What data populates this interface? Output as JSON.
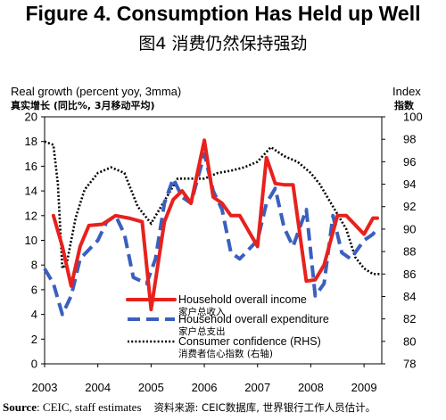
{
  "header": {
    "title": "Figure 4. Consumption Has Held up Well",
    "title_cn": "图4  消费仍然保持强劲"
  },
  "axes": {
    "left_label": "Real growth (percent yoy, 3mma)",
    "left_label_cn": "真实增长 (同比%, 3月移动平均)",
    "right_label": "Index",
    "right_label_cn": "指数"
  },
  "source": {
    "bold": "Source",
    "text": ": CEIC, staff estimates",
    "cn": "资料来源: CEIC数据库, 世界银行工作人员估计。"
  },
  "chart_data": {
    "type": "line",
    "x_start": "2003-01",
    "x_end": "2009-05",
    "x_tick_labels": [
      "2003",
      "2004",
      "2005",
      "2006",
      "2007",
      "2008",
      "2009"
    ],
    "ylim_left": [
      0,
      20
    ],
    "y_ticks_left": [
      0,
      2,
      4,
      6,
      8,
      10,
      12,
      14,
      16,
      18,
      20
    ],
    "ylim_right": [
      78,
      100
    ],
    "y_ticks_right": [
      78,
      80,
      82,
      84,
      86,
      88,
      90,
      92,
      94,
      96,
      98,
      100
    ],
    "grid": false,
    "legend_position": "bottom-center",
    "series": [
      {
        "name": "Household overall income",
        "name_cn": "家户总收入",
        "axis": "left",
        "color": "#e8211d",
        "style": "solid",
        "points": [
          [
            "2003-03",
            12.0
          ],
          [
            "2003-05",
            9.5
          ],
          [
            "2003-07",
            6.3
          ],
          [
            "2003-09",
            9.5
          ],
          [
            "2003-11",
            11.2
          ],
          [
            "2004-02",
            11.3
          ],
          [
            "2004-05",
            12.0
          ],
          [
            "2004-08",
            11.8
          ],
          [
            "2004-11",
            11.5
          ],
          [
            "2005-01",
            4.4
          ],
          [
            "2005-04",
            11.5
          ],
          [
            "2005-06",
            13.3
          ],
          [
            "2005-08",
            14.0
          ],
          [
            "2005-10",
            13.0
          ],
          [
            "2006-01",
            18.1
          ],
          [
            "2006-03",
            13.5
          ],
          [
            "2006-05",
            13.0
          ],
          [
            "2006-07",
            12.0
          ],
          [
            "2006-09",
            12.0
          ],
          [
            "2007-01",
            9.5
          ],
          [
            "2007-03",
            16.7
          ],
          [
            "2007-05",
            14.6
          ],
          [
            "2007-07",
            14.5
          ],
          [
            "2007-09",
            14.5
          ],
          [
            "2007-12",
            6.7
          ],
          [
            "2008-02",
            6.8
          ],
          [
            "2008-04",
            8.0
          ],
          [
            "2008-07",
            12.0
          ],
          [
            "2008-09",
            12.0
          ],
          [
            "2009-01",
            10.5
          ],
          [
            "2009-03",
            11.8
          ],
          [
            "2009-04",
            11.8
          ]
        ]
      },
      {
        "name": "Household overall expenditure",
        "name_cn": "家户总支出",
        "axis": "left",
        "color": "#3a5fbf",
        "style": "dashed",
        "points": [
          [
            "2003-01",
            7.7
          ],
          [
            "2003-03",
            6.5
          ],
          [
            "2003-05",
            4.0
          ],
          [
            "2003-07",
            5.5
          ],
          [
            "2003-09",
            8.5
          ],
          [
            "2004-01",
            10.0
          ],
          [
            "2004-03",
            11.5
          ],
          [
            "2004-05",
            12.0
          ],
          [
            "2004-07",
            10.5
          ],
          [
            "2004-09",
            7.0
          ],
          [
            "2004-12",
            6.5
          ],
          [
            "2005-02",
            8.5
          ],
          [
            "2005-04",
            13.0
          ],
          [
            "2005-06",
            15.0
          ],
          [
            "2005-08",
            13.5
          ],
          [
            "2005-10",
            13.0
          ],
          [
            "2006-01",
            17.0
          ],
          [
            "2006-03",
            14.0
          ],
          [
            "2006-05",
            12.5
          ],
          [
            "2006-07",
            9.0
          ],
          [
            "2006-09",
            8.5
          ],
          [
            "2007-01",
            10.0
          ],
          [
            "2007-03",
            13.0
          ],
          [
            "2007-05",
            14.2
          ],
          [
            "2007-07",
            11.0
          ],
          [
            "2007-09",
            9.5
          ],
          [
            "2007-12",
            12.5
          ],
          [
            "2008-02",
            5.5
          ],
          [
            "2008-04",
            6.5
          ],
          [
            "2008-06",
            12.0
          ],
          [
            "2008-08",
            9.0
          ],
          [
            "2008-10",
            8.5
          ],
          [
            "2009-01",
            10.0
          ],
          [
            "2009-03",
            10.5
          ],
          [
            "2009-04",
            11.0
          ]
        ]
      },
      {
        "name": "Consumer confidence (RHS)",
        "name_cn": "消费者信心指数 (右轴)",
        "axis": "right",
        "color": "#000000",
        "style": "dotted",
        "points": [
          [
            "2003-01",
            97.8
          ],
          [
            "2003-03",
            97.5
          ],
          [
            "2003-04",
            94.0
          ],
          [
            "2003-05",
            86.5
          ],
          [
            "2003-06",
            87.0
          ],
          [
            "2003-08",
            91.0
          ],
          [
            "2003-10",
            93.5
          ],
          [
            "2004-01",
            95.0
          ],
          [
            "2004-04",
            95.5
          ],
          [
            "2004-07",
            95.0
          ],
          [
            "2004-10",
            92.0
          ],
          [
            "2005-01",
            90.5
          ],
          [
            "2005-04",
            92.5
          ],
          [
            "2005-07",
            94.5
          ],
          [
            "2005-10",
            94.5
          ],
          [
            "2006-01",
            94.5
          ],
          [
            "2006-04",
            95.0
          ],
          [
            "2006-07",
            95.2
          ],
          [
            "2006-10",
            95.5
          ],
          [
            "2007-01",
            96.0
          ],
          [
            "2007-04",
            97.3
          ],
          [
            "2007-07",
            96.5
          ],
          [
            "2007-10",
            96.0
          ],
          [
            "2008-01",
            95.0
          ],
          [
            "2008-03",
            94.0
          ],
          [
            "2008-06",
            92.0
          ],
          [
            "2008-09",
            90.0
          ],
          [
            "2008-11",
            87.5
          ],
          [
            "2009-01",
            86.5
          ],
          [
            "2009-03",
            86.0
          ],
          [
            "2009-05",
            86.0
          ]
        ]
      }
    ]
  }
}
